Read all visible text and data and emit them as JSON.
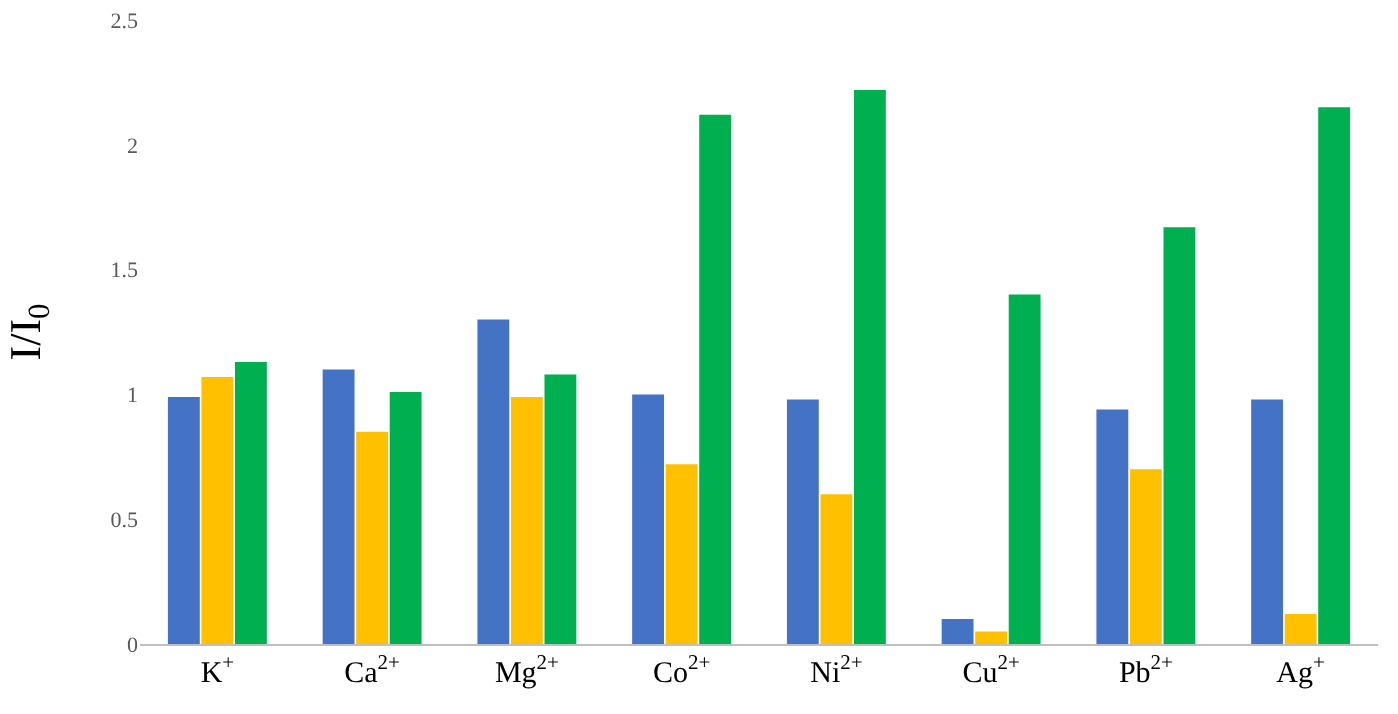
{
  "chart_data": {
    "type": "bar",
    "ylabel": "I/I$_{0}$",
    "categories": [
      "K$^{+}$",
      "Ca$^{2+}$",
      "Mg$^{2+}$",
      "Co$^{2+}$",
      "Ni$^{2+}$",
      "Cu$^{2+}$",
      "Pb$^{2+}$",
      "Ag$^{+}$"
    ],
    "series": [
      {
        "color": "#4472c4",
        "values": [
          0.99,
          1.1,
          1.3,
          1.0,
          0.98,
          0.1,
          0.94,
          0.98
        ]
      },
      {
        "color": "#ffc000",
        "values": [
          1.07,
          0.85,
          0.99,
          0.72,
          0.6,
          0.05,
          0.7,
          0.12
        ]
      },
      {
        "color": "#00b050",
        "values": [
          1.13,
          1.01,
          1.08,
          2.12,
          2.22,
          1.4,
          1.67,
          2.15
        ]
      }
    ],
    "ylim": [
      0,
      2.5
    ],
    "yticks": [
      0,
      0.5,
      1,
      1.5,
      2,
      2.5
    ],
    "grid": false
  }
}
